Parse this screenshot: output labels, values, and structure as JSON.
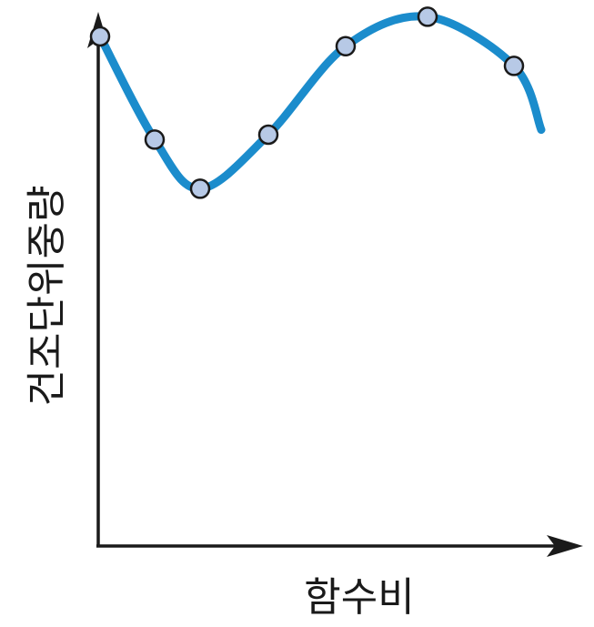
{
  "chart_data": {
    "type": "line",
    "title": "",
    "xlabel": "함수비",
    "ylabel": "건조단위중량",
    "xlim": [
      0,
      100
    ],
    "ylim": [
      0,
      100
    ],
    "grid": false,
    "legend": "none",
    "series": [
      {
        "points": [
          {
            "x": 0,
            "y": 100
          },
          {
            "x": 12,
            "y": 79
          },
          {
            "x": 22,
            "y": 69
          },
          {
            "x": 37,
            "y": 80
          },
          {
            "x": 54,
            "y": 98
          },
          {
            "x": 72,
            "y": 104
          },
          {
            "x": 91,
            "y": 94
          }
        ],
        "curve_extension": {
          "x": 97,
          "y": 81
        }
      }
    ],
    "colors": {
      "curve": "#1b8ccc",
      "marker_fill": "#b7c9e6",
      "marker_stroke": "#1a1a1a",
      "axis": "#1a1a1a"
    }
  }
}
